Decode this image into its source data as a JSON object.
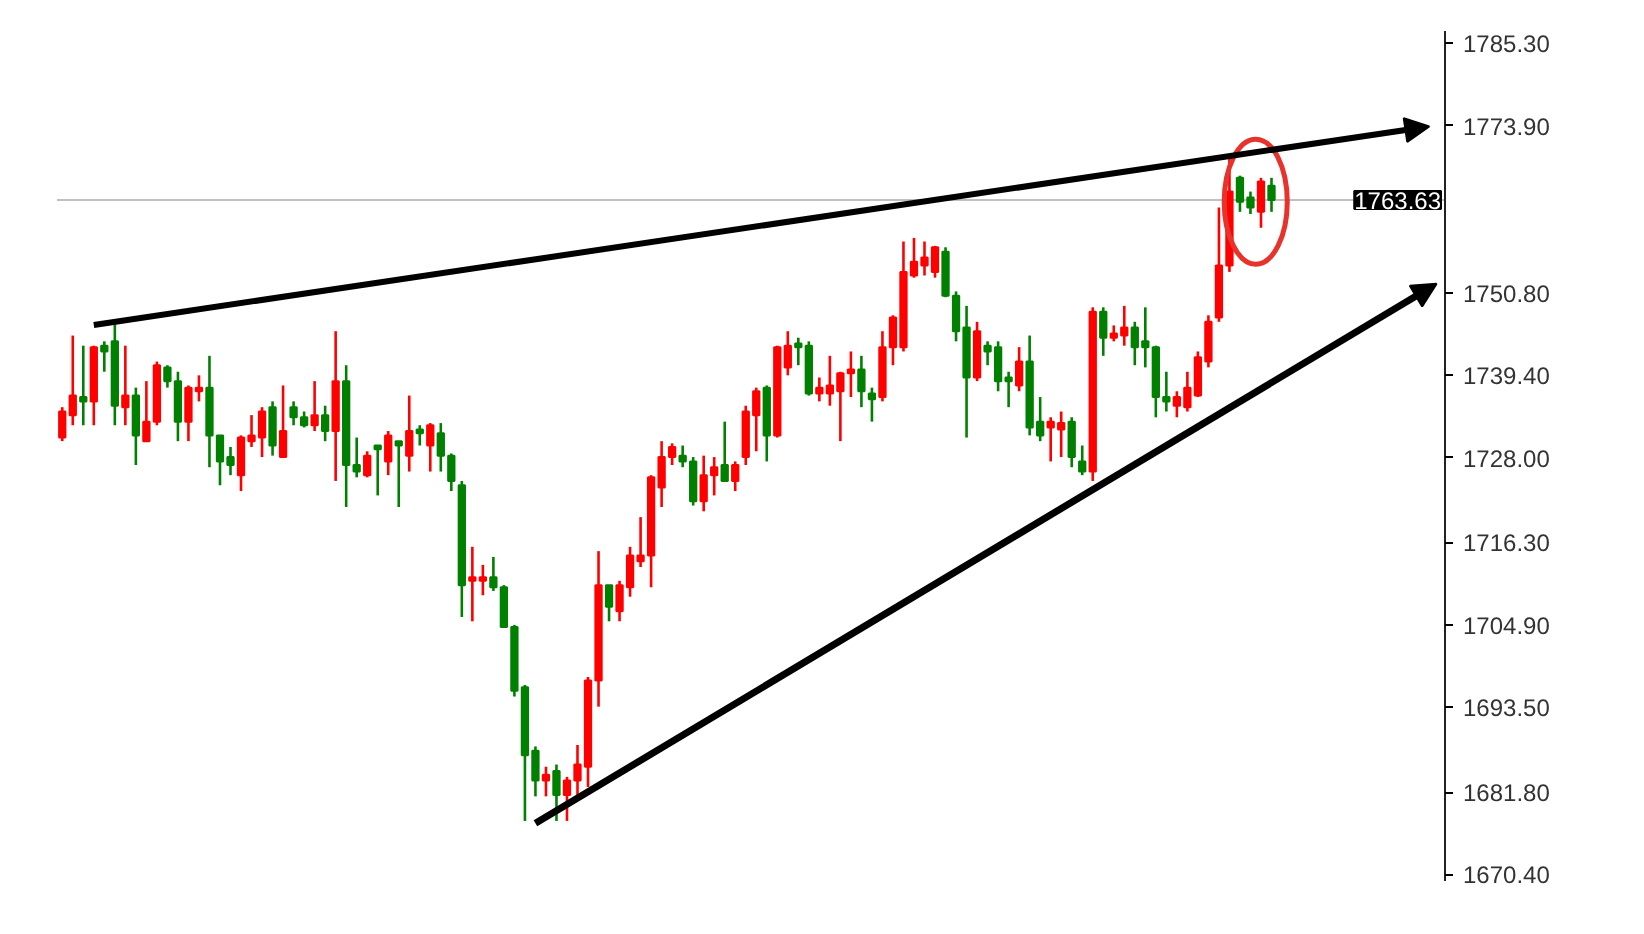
{
  "chart_data": {
    "type": "candlestick",
    "categories": [
      null,
      null,
      null,
      null,
      null,
      null,
      null,
      null,
      null,
      null,
      null,
      null,
      null,
      null,
      null,
      null,
      null,
      null,
      null,
      null,
      null,
      null,
      null,
      null,
      null,
      null,
      null,
      null,
      null,
      null,
      null,
      null,
      null,
      null,
      null,
      null,
      null,
      null,
      null,
      null,
      null,
      null,
      null,
      null,
      null,
      null,
      null,
      null,
      null,
      null,
      null,
      null,
      null,
      null,
      null,
      null,
      null,
      null,
      null,
      null,
      null,
      null,
      null,
      null,
      null,
      null,
      null,
      null,
      null,
      null,
      null,
      null,
      null,
      null,
      null,
      null,
      null,
      null,
      null,
      null,
      null,
      null,
      null,
      null,
      null,
      null,
      null,
      null,
      null,
      null,
      null,
      null,
      null,
      null,
      null,
      null,
      null,
      null,
      null,
      null,
      null,
      null,
      null,
      null,
      null,
      null,
      null,
      null,
      null,
      null,
      null,
      null,
      null,
      null,
      null,
      null,
      null,
      null,
      null,
      null,
      null,
      null,
      null,
      null,
      null,
      null,
      null,
      null,
      null,
      null,
      null,
      null
    ],
    "ohlc": [
      [
        1730.8,
        1735.0,
        1730.3,
        1734.4
      ],
      [
        1733.9,
        1744.9,
        1732.5,
        1736.6
      ],
      [
        1736.4,
        1743.5,
        1732.5,
        1735.8
      ],
      [
        1735.8,
        1743.5,
        1732.5,
        1743.3
      ],
      [
        1743.5,
        1744.1,
        1739.9,
        1742.7
      ],
      [
        1744.1,
        1746.8,
        1732.5,
        1735.2
      ],
      [
        1735.0,
        1743.5,
        1732.5,
        1736.6
      ],
      [
        1736.6,
        1737.7,
        1727.0,
        1731.1
      ],
      [
        1730.3,
        1738.6,
        1730.3,
        1733.0
      ],
      [
        1733.0,
        1741.3,
        1732.5,
        1740.8
      ],
      [
        1740.5,
        1740.8,
        1737.7,
        1738.6
      ],
      [
        1738.6,
        1739.9,
        1730.3,
        1733.0
      ],
      [
        1733.0,
        1738.0,
        1730.3,
        1737.7
      ],
      [
        1737.2,
        1739.4,
        1735.8,
        1737.7
      ],
      [
        1737.7,
        1742.1,
        1726.7,
        1731.1
      ],
      [
        1731.1,
        1731.1,
        1724.2,
        1727.5
      ],
      [
        1728.1,
        1729.5,
        1725.6,
        1727.0
      ],
      [
        1725.6,
        1731.1,
        1723.4,
        1730.8
      ],
      [
        1730.3,
        1733.9,
        1729.5,
        1731.1
      ],
      [
        1730.8,
        1735.0,
        1728.1,
        1734.4
      ],
      [
        1735.0,
        1735.8,
        1728.3,
        1729.7
      ],
      [
        1728.1,
        1738.0,
        1728.1,
        1731.7
      ],
      [
        1735.0,
        1735.8,
        1732.5,
        1733.6
      ],
      [
        1733.6,
        1734.4,
        1732.2,
        1732.5
      ],
      [
        1732.5,
        1738.6,
        1731.7,
        1733.9
      ],
      [
        1733.9,
        1735.2,
        1730.3,
        1731.7
      ],
      [
        1731.7,
        1745.5,
        1724.8,
        1738.6
      ],
      [
        1738.6,
        1740.8,
        1721.2,
        1727.0
      ],
      [
        1727.0,
        1730.8,
        1725.3,
        1726.1
      ],
      [
        1725.6,
        1728.9,
        1725.3,
        1728.3
      ],
      [
        1729.7,
        1729.7,
        1722.8,
        1729.2
      ],
      [
        1727.5,
        1731.7,
        1725.6,
        1731.1
      ],
      [
        1730.3,
        1730.3,
        1721.2,
        1729.7
      ],
      [
        1728.3,
        1736.6,
        1726.1,
        1731.7
      ],
      [
        1731.9,
        1732.5,
        1729.7,
        1731.4
      ],
      [
        1729.7,
        1732.8,
        1726.1,
        1732.5
      ],
      [
        1731.4,
        1732.8,
        1726.1,
        1728.3
      ],
      [
        1728.3,
        1728.6,
        1723.4,
        1724.8
      ],
      [
        1724.2,
        1724.8,
        1706.0,
        1710.4
      ],
      [
        1711.0,
        1715.7,
        1705.4,
        1711.5
      ],
      [
        1711.0,
        1713.2,
        1709.0,
        1711.5
      ],
      [
        1711.5,
        1714.3,
        1709.6,
        1710.1
      ],
      [
        1710.1,
        1710.4,
        1704.6,
        1704.6
      ],
      [
        1704.6,
        1704.9,
        1695.0,
        1695.8
      ],
      [
        1696.3,
        1696.6,
        1677.8,
        1686.9
      ],
      [
        1687.5,
        1688.1,
        1681.2,
        1683.4
      ],
      [
        1683.4,
        1685.3,
        1681.2,
        1684.2
      ],
      [
        1684.7,
        1685.6,
        1677.8,
        1681.4
      ],
      [
        1681.4,
        1683.9,
        1677.8,
        1683.4
      ],
      [
        1683.4,
        1688.3,
        1681.2,
        1685.6
      ],
      [
        1685.3,
        1697.7,
        1682.5,
        1697.2
      ],
      [
        1697.2,
        1715.1,
        1693.6,
        1710.4
      ],
      [
        1710.4,
        1710.4,
        1705.4,
        1707.4
      ],
      [
        1706.8,
        1711.0,
        1705.4,
        1710.4
      ],
      [
        1710.1,
        1715.7,
        1708.8,
        1714.5
      ],
      [
        1713.7,
        1719.8,
        1712.9,
        1714.5
      ],
      [
        1714.5,
        1725.6,
        1710.1,
        1725.3
      ],
      [
        1723.9,
        1730.3,
        1721.2,
        1728.1
      ],
      [
        1728.1,
        1730.0,
        1727.0,
        1729.5
      ],
      [
        1728.3,
        1729.7,
        1726.7,
        1727.5
      ],
      [
        1727.5,
        1728.1,
        1721.4,
        1722.0
      ],
      [
        1722.0,
        1728.3,
        1720.6,
        1725.6
      ],
      [
        1725.6,
        1728.1,
        1722.8,
        1726.7
      ],
      [
        1727.0,
        1733.0,
        1724.8,
        1724.8
      ],
      [
        1724.8,
        1727.5,
        1723.4,
        1727.0
      ],
      [
        1728.1,
        1735.2,
        1727.0,
        1734.4
      ],
      [
        1733.9,
        1737.7,
        1728.9,
        1737.2
      ],
      [
        1737.7,
        1738.0,
        1727.5,
        1731.1
      ],
      [
        1731.1,
        1743.5,
        1730.8,
        1743.3
      ],
      [
        1740.5,
        1745.5,
        1739.4,
        1743.5
      ],
      [
        1743.8,
        1744.6,
        1740.8,
        1743.3
      ],
      [
        1743.5,
        1744.1,
        1736.6,
        1736.9
      ],
      [
        1736.9,
        1739.1,
        1735.8,
        1737.7
      ],
      [
        1736.9,
        1742.1,
        1735.2,
        1738.0
      ],
      [
        1737.2,
        1739.9,
        1730.3,
        1739.7
      ],
      [
        1739.7,
        1742.7,
        1736.4,
        1740.2
      ],
      [
        1740.2,
        1742.1,
        1735.0,
        1737.2
      ],
      [
        1736.9,
        1737.7,
        1733.0,
        1736.1
      ],
      [
        1736.4,
        1745.5,
        1735.8,
        1743.3
      ],
      [
        1743.3,
        1747.7,
        1740.8,
        1747.4
      ],
      [
        1743.3,
        1757.9,
        1742.7,
        1753.7
      ],
      [
        1753.2,
        1758.4,
        1752.9,
        1755.1
      ],
      [
        1754.6,
        1757.9,
        1753.2,
        1755.7
      ],
      [
        1753.7,
        1757.3,
        1752.9,
        1757.1
      ],
      [
        1756.5,
        1757.1,
        1750.2,
        1750.4
      ],
      [
        1750.4,
        1751.0,
        1744.1,
        1745.5
      ],
      [
        1746.0,
        1749.0,
        1730.8,
        1739.1
      ],
      [
        1739.1,
        1746.8,
        1738.6,
        1745.5
      ],
      [
        1743.5,
        1744.1,
        1740.8,
        1742.7
      ],
      [
        1743.3,
        1744.1,
        1737.2,
        1738.6
      ],
      [
        1739.1,
        1739.9,
        1735.0,
        1738.6
      ],
      [
        1738.0,
        1743.3,
        1737.2,
        1741.3
      ],
      [
        1741.3,
        1744.9,
        1731.1,
        1732.2
      ],
      [
        1733.0,
        1736.4,
        1730.3,
        1731.1
      ],
      [
        1732.2,
        1733.6,
        1727.5,
        1733.0
      ],
      [
        1731.9,
        1734.4,
        1728.1,
        1732.8
      ],
      [
        1733.0,
        1733.6,
        1726.7,
        1728.1
      ],
      [
        1727.5,
        1729.7,
        1725.6,
        1726.1
      ],
      [
        1726.1,
        1748.8,
        1724.8,
        1748.2
      ],
      [
        1748.2,
        1748.8,
        1742.1,
        1744.6
      ],
      [
        1744.6,
        1746.3,
        1744.1,
        1745.2
      ],
      [
        1744.9,
        1749.0,
        1743.5,
        1746.0
      ],
      [
        1746.0,
        1746.8,
        1740.8,
        1743.3
      ],
      [
        1744.1,
        1748.8,
        1740.5,
        1743.3
      ],
      [
        1743.3,
        1743.5,
        1733.6,
        1736.4
      ],
      [
        1736.4,
        1739.9,
        1734.4,
        1735.8
      ],
      [
        1735.2,
        1737.2,
        1733.6,
        1736.4
      ],
      [
        1735.0,
        1739.9,
        1734.4,
        1737.7
      ],
      [
        1736.6,
        1742.7,
        1736.4,
        1741.9
      ],
      [
        1741.3,
        1747.7,
        1740.5,
        1746.8
      ],
      [
        1747.4,
        1762.6,
        1746.8,
        1754.6
      ],
      [
        1754.6,
        1769.7,
        1753.7,
        1764.8
      ],
      [
        1766.7,
        1767.0,
        1762.0,
        1763.4
      ],
      [
        1764.0,
        1764.8,
        1761.7,
        1762.6
      ],
      [
        1762.0,
        1766.7,
        1759.8,
        1766.2
      ],
      [
        1765.6,
        1766.7,
        1762.0,
        1763.63
      ],
      null,
      null,
      null,
      null,
      null,
      null,
      null,
      null,
      null,
      null,
      null,
      null,
      null,
      null,
      null,
      null
    ],
    "colors": [
      "#ff0000",
      "#ff0000",
      "#008000",
      "#ff0000",
      "#008000",
      "#008000",
      "#ff0000",
      "#008000",
      "#ff0000",
      "#ff0000",
      "#008000",
      "#008000",
      "#ff0000",
      "#ff0000",
      "#008000",
      "#008000",
      "#008000",
      "#ff0000",
      "#ff0000",
      "#ff0000",
      "#008000",
      "#ff0000",
      "#008000",
      "#008000",
      "#ff0000",
      "#008000",
      "#ff0000",
      "#008000",
      "#008000",
      "#ff0000",
      "#008000",
      "#ff0000",
      "#008000",
      "#ff0000",
      "#008000",
      "#ff0000",
      "#008000",
      "#008000",
      "#008000",
      "#ff0000",
      "#ff0000",
      "#008000",
      "#008000",
      "#008000",
      "#008000",
      "#008000",
      "#ff0000",
      "#008000",
      "#ff0000",
      "#ff0000",
      "#ff0000",
      "#ff0000",
      "#008000",
      "#ff0000",
      "#ff0000",
      "#ff0000",
      "#ff0000",
      "#ff0000",
      "#ff0000",
      "#008000",
      "#008000",
      "#ff0000",
      "#ff0000",
      "#008000",
      "#ff0000",
      "#ff0000",
      "#ff0000",
      "#008000",
      "#ff0000",
      "#ff0000",
      "#008000",
      "#008000",
      "#ff0000",
      "#ff0000",
      "#ff0000",
      "#ff0000",
      "#008000",
      "#008000",
      "#ff0000",
      "#ff0000",
      "#ff0000",
      "#ff0000",
      "#ff0000",
      "#ff0000",
      "#008000",
      "#008000",
      "#008000",
      "#ff0000",
      "#008000",
      "#008000",
      "#008000",
      "#ff0000",
      "#008000",
      "#008000",
      "#ff0000",
      "#ff0000",
      "#008000",
      "#008000",
      "#ff0000",
      "#008000",
      "#ff0000",
      "#ff0000",
      "#008000",
      "#008000",
      "#008000",
      "#008000",
      "#ff0000",
      "#ff0000",
      "#ff0000",
      "#ff0000",
      "#ff0000",
      "#ff0000",
      "#008000",
      "#008000",
      "#ff0000",
      "#008000",
      null,
      null,
      null,
      null,
      null,
      null,
      null,
      null,
      null,
      null,
      null,
      null,
      null,
      null,
      null,
      null
    ],
    "ylim": [
      1669.5,
      1787.0
    ],
    "yticks": [
      {
        "value": 1785.3,
        "label": "1785.30"
      },
      {
        "value": 1773.9,
        "label": "1773.90"
      },
      {
        "value": 1750.8,
        "label": "1750.80"
      },
      {
        "value": 1739.4,
        "label": "1739.40"
      },
      {
        "value": 1728.0,
        "label": "1728.00"
      },
      {
        "value": 1716.3,
        "label": "1716.30"
      },
      {
        "value": 1704.9,
        "label": "1704.90"
      },
      {
        "value": 1693.5,
        "label": "1693.50"
      },
      {
        "value": 1681.8,
        "label": "1681.80"
      },
      {
        "value": 1670.4,
        "label": "1670.40"
      }
    ],
    "ref_lines": [
      {
        "axis": "y",
        "value": 1763.63,
        "label": "1763.63",
        "color": "#c0c0c0"
      }
    ],
    "tick_labels": "y",
    "grid": false
  }
}
